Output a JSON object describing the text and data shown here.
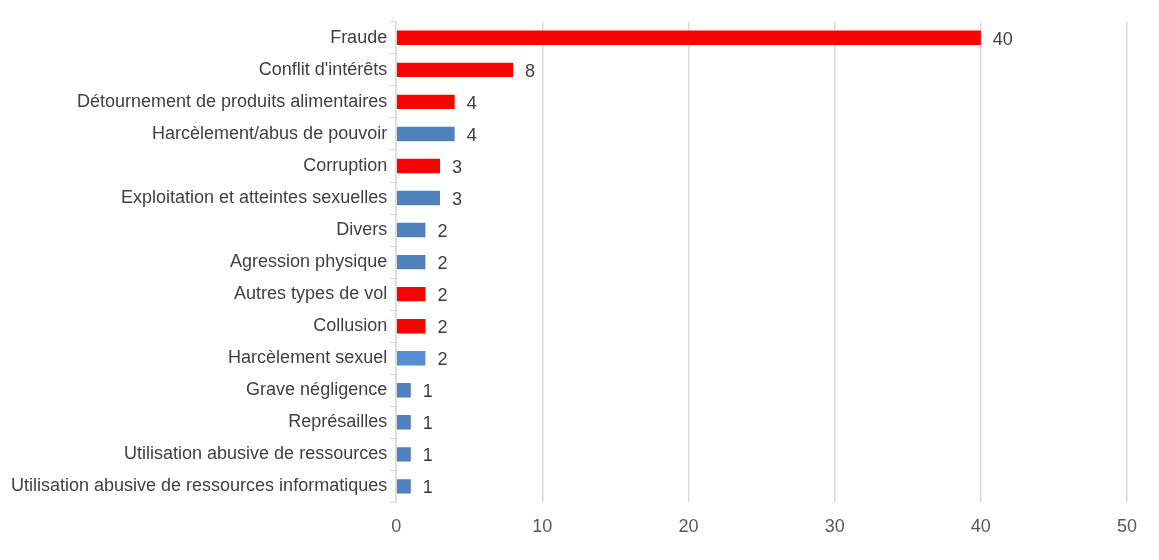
{
  "chart_data": {
    "type": "bar",
    "orientation": "horizontal",
    "categories": [
      "Fraude",
      "Conflit d'intérêts",
      "Détournement de produits alimentaires",
      "Harcèlement/abus de pouvoir",
      "Corruption",
      "Exploitation et atteintes sexuelles",
      "Divers",
      "Agression physique",
      "Autres types de vol",
      "Collusion",
      "Harcèlement sexuel",
      "Grave négligence",
      "Représailles",
      "Utilisation abusive de ressources",
      "Utilisation abusive de ressources informatiques"
    ],
    "values": [
      40,
      8,
      4,
      4,
      3,
      3,
      2,
      2,
      2,
      2,
      2,
      1,
      1,
      1,
      1
    ],
    "colors": [
      "#ff0000",
      "#ff0000",
      "#ff0000",
      "#4f81bd",
      "#ff0000",
      "#4f81bd",
      "#4f81bd",
      "#4f81bd",
      "#ff0000",
      "#ff0000",
      "#558ed5",
      "#4f81bd",
      "#4f81bd",
      "#4f81bd",
      "#4f81bd"
    ],
    "xlim": [
      0,
      50
    ],
    "xticks": [
      0,
      10,
      20,
      30,
      40,
      50
    ],
    "grid": "x",
    "data_labels": true
  }
}
